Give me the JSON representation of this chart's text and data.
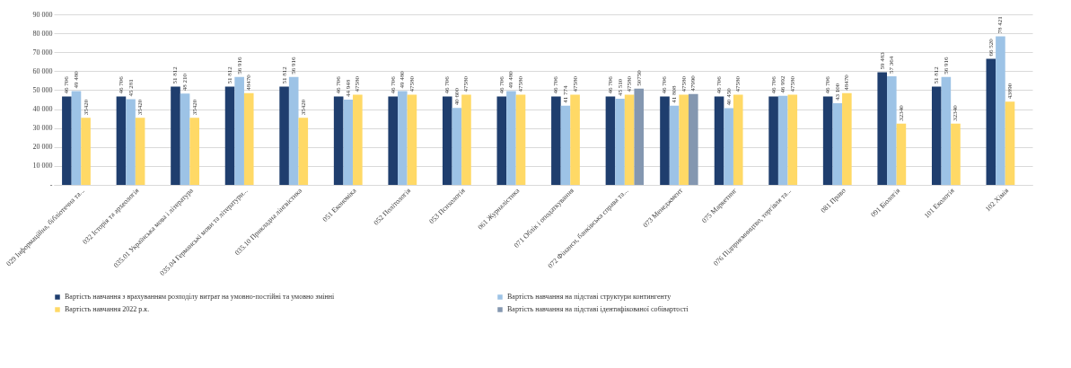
{
  "chart_data": {
    "type": "bar",
    "categories": [
      "029 Інформаційна, бібліотечна та...",
      "032 Історія та археологія",
      "035.01 Українська мова і література",
      "035.04 Германські мови та літератури...",
      "035.10 Прикладна лінгвістика",
      "051 Економіка",
      "052 Політологія",
      "053 Психологія",
      "061 Журналістика",
      "071 Облік і оподаткування",
      "072 Фінанси, банківська справа та...",
      "073 Менеджмент",
      "075 Маркетинг",
      "076 Підприємництво, торгівля та...",
      "081 Право",
      "091 Біологія",
      "101 Екологія",
      "102 Хімія"
    ],
    "series": [
      {
        "name": "Вартість навчання з врахуванням розподілу витрат на умовно-постійні та умовно змінні",
        "color": "#1f3e6e",
        "values": [
          46706,
          46706,
          51812,
          51812,
          51812,
          46706,
          46706,
          46706,
          46706,
          46706,
          46706,
          46706,
          46706,
          46706,
          46706,
          59483,
          51812,
          66520
        ],
        "value_labels": [
          "46 706",
          "46 706",
          "51 812",
          "51 812",
          "51 812",
          "46 706",
          "46 706",
          "46 706",
          "46 706",
          "46 706",
          "46 706",
          "46 706",
          "46 706",
          "46 706",
          "46 706",
          "59 483",
          "51 812",
          "66 520"
        ]
      },
      {
        "name": "Вартість навчання на підставі структури контингенту",
        "color": "#9dc3e6",
        "values": [
          49480,
          45281,
          48210,
          56916,
          56916,
          44948,
          49480,
          40600,
          49480,
          41774,
          45510,
          41808,
          40450,
          46992,
          43100,
          57364,
          56916,
          78421
        ],
        "value_labels": [
          "49 480",
          "45 281",
          "48 210",
          "56 916",
          "56 916",
          "44 948",
          "49 480",
          "40 600",
          "49 480",
          "41 774",
          "45 510",
          "41 808",
          "40 450",
          "46 992",
          "43 100",
          "57 364",
          "56 916",
          "78 421"
        ]
      },
      {
        "name": "Вартість навчання 2022 р.к.",
        "color": "#ffd966",
        "values": [
          35420,
          35420,
          35420,
          48470,
          35420,
          47580,
          47580,
          47580,
          47580,
          47580,
          47580,
          47580,
          47580,
          47580,
          48470,
          32340,
          32340,
          43890
        ],
        "value_labels": [
          "35420",
          "35420",
          "35420",
          "48470",
          "35420",
          "47580",
          "47580",
          "47580",
          "47580",
          "47580",
          "47580",
          "47580",
          "47580",
          "47580",
          "48470",
          "32340",
          "32340",
          "43890"
        ]
      },
      {
        "name": "Вартість навчання на підставі ідентифікованої собівартості",
        "color": "#8497b0",
        "values": [
          null,
          null,
          null,
          null,
          null,
          null,
          null,
          null,
          null,
          null,
          50750,
          47990,
          null,
          null,
          null,
          null,
          null,
          null
        ],
        "value_labels": [
          null,
          null,
          null,
          null,
          null,
          null,
          null,
          null,
          null,
          null,
          "50750",
          "47990",
          null,
          null,
          null,
          null,
          null,
          null
        ]
      }
    ],
    "ylim": [
      0,
      90000
    ],
    "yticks": [
      {
        "value": 0,
        "label": "-"
      },
      {
        "value": 10000,
        "label": "10 000"
      },
      {
        "value": 20000,
        "label": "20 000"
      },
      {
        "value": 30000,
        "label": "30 000"
      },
      {
        "value": 40000,
        "label": "40 000"
      },
      {
        "value": 50000,
        "label": "50 000"
      },
      {
        "value": 60000,
        "label": "60 000"
      },
      {
        "value": 70000,
        "label": "70 000"
      },
      {
        "value": 80000,
        "label": "80 000"
      },
      {
        "value": 90000,
        "label": "90 000"
      }
    ],
    "grid": "y",
    "legend": "bottom"
  }
}
